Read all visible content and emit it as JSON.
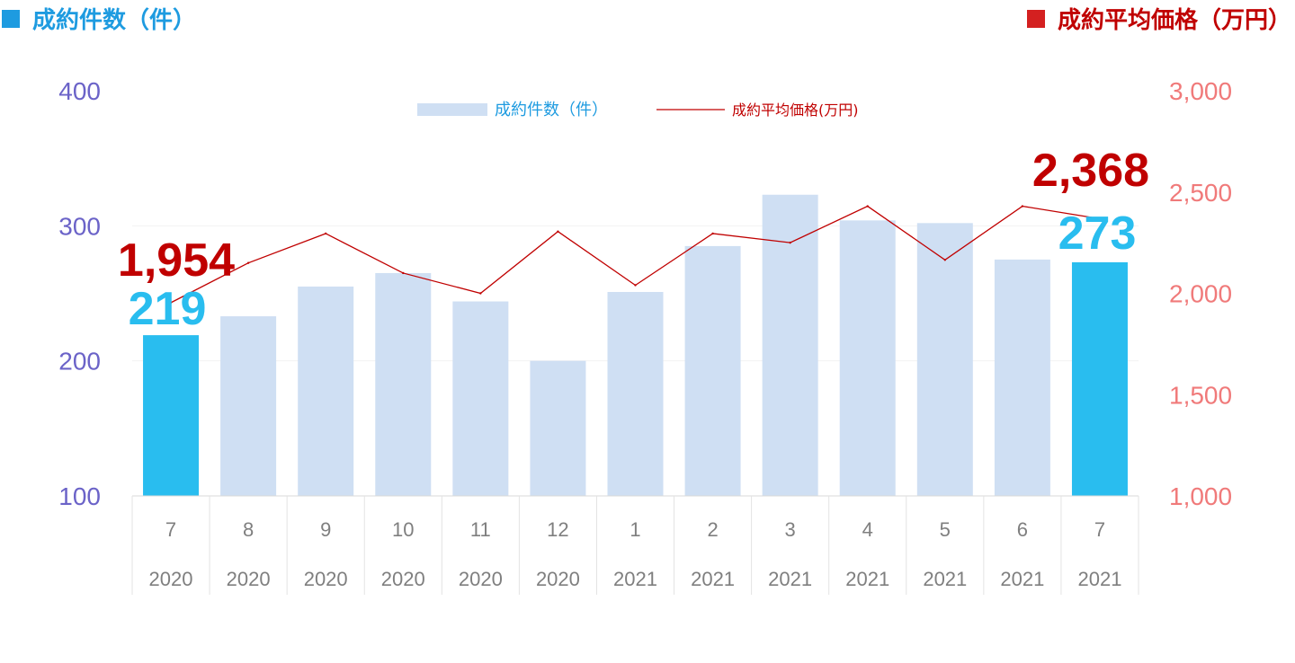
{
  "header": {
    "left_title": "成約件数（件）",
    "right_title": "成約平均価格（万円）"
  },
  "colors": {
    "bar": "#cfdff3",
    "bar_highlight": "#29bdef",
    "line": "#c00000",
    "left_axis": "#6b63c8",
    "right_axis": "#f07a7a",
    "left_title": "#1e9be0",
    "right_title": "#c00000",
    "tick": "#7f7f7f",
    "callout_count": "#29bdef",
    "callout_price": "#c00000"
  },
  "chart_data": {
    "type": "bar",
    "categories": [
      "7",
      "8",
      "9",
      "10",
      "11",
      "12",
      "1",
      "2",
      "3",
      "4",
      "5",
      "6",
      "7"
    ],
    "years": [
      "2020",
      "2020",
      "2020",
      "2020",
      "2020",
      "2020",
      "2021",
      "2021",
      "2021",
      "2021",
      "2021",
      "2021",
      "2021"
    ],
    "series": [
      {
        "name": "成約件数（件）",
        "type": "bar",
        "axis": "left",
        "values": [
          219,
          233,
          255,
          265,
          244,
          200,
          251,
          285,
          323,
          304,
          302,
          275,
          273
        ],
        "highlight_indices": [
          0,
          12
        ]
      },
      {
        "name": "成約平均価格(万円)",
        "type": "line",
        "axis": "right",
        "values": [
          1954,
          2150,
          2295,
          2100,
          2000,
          2305,
          2040,
          2295,
          2250,
          2430,
          2165,
          2430,
          2368
        ]
      }
    ],
    "y_left": {
      "range": [
        100,
        400
      ],
      "ticks": [
        "100",
        "200",
        "300",
        "400"
      ]
    },
    "y_right": {
      "range": [
        1000,
        3000
      ],
      "ticks": [
        "1,000",
        "1,500",
        "2,000",
        "2,500",
        "3,000"
      ]
    },
    "legend": {
      "position": "top-center",
      "items": [
        "成約件数（件）",
        "成約平均価格(万円)"
      ]
    },
    "callouts": {
      "first_price": "1,954",
      "first_count": "219",
      "last_price": "2,368",
      "last_count": "273"
    }
  }
}
